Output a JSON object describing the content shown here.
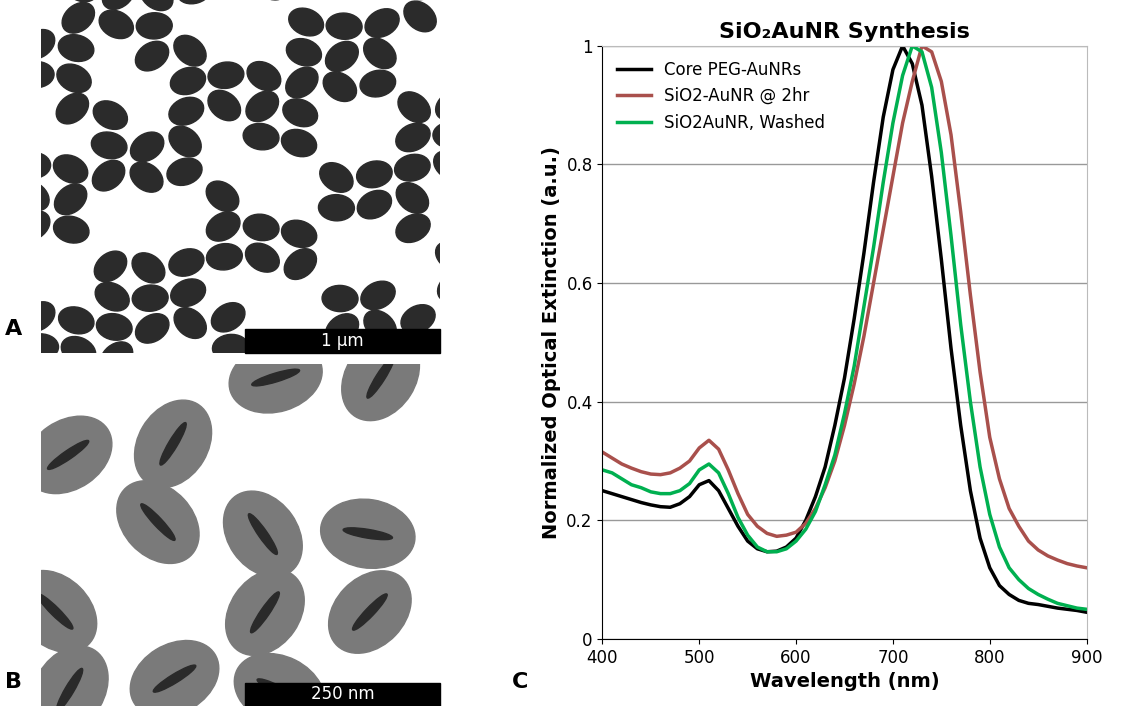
{
  "chart_panel": "C",
  "images": [
    {
      "panel": "A",
      "scale_bar": "1 µm"
    },
    {
      "panel": "B",
      "scale_bar": "250 nm"
    }
  ],
  "chart_data": {
    "type": "line",
    "title": "SiO₂AuNR Synthesis",
    "x_label": "Wavelength (nm)",
    "y_label": "Normalized Optical Extinction (a.u.)",
    "x": [
      400,
      410,
      420,
      430,
      440,
      450,
      460,
      470,
      480,
      490,
      500,
      510,
      520,
      530,
      540,
      550,
      560,
      570,
      580,
      590,
      600,
      610,
      620,
      630,
      640,
      650,
      660,
      670,
      680,
      690,
      700,
      710,
      720,
      730,
      740,
      750,
      760,
      770,
      780,
      790,
      800,
      810,
      820,
      830,
      840,
      850,
      860,
      870,
      880,
      890,
      900
    ],
    "series": [
      {
        "name": "Core PEG-AuNRs",
        "color": "#000000",
        "values": [
          0.25,
          0.245,
          0.24,
          0.235,
          0.23,
          0.226,
          0.223,
          0.222,
          0.228,
          0.24,
          0.26,
          0.267,
          0.25,
          0.22,
          0.19,
          0.165,
          0.152,
          0.147,
          0.148,
          0.155,
          0.17,
          0.2,
          0.24,
          0.29,
          0.36,
          0.44,
          0.54,
          0.65,
          0.77,
          0.88,
          0.96,
          1.0,
          0.97,
          0.9,
          0.78,
          0.64,
          0.49,
          0.36,
          0.25,
          0.17,
          0.12,
          0.09,
          0.075,
          0.065,
          0.06,
          0.058,
          0.055,
          0.052,
          0.05,
          0.048,
          0.045
        ]
      },
      {
        "name": "SiO2-AuNR @ 2hr",
        "color": "#A9504C",
        "values": [
          0.315,
          0.305,
          0.295,
          0.288,
          0.282,
          0.278,
          0.277,
          0.28,
          0.288,
          0.3,
          0.322,
          0.335,
          0.32,
          0.285,
          0.245,
          0.21,
          0.19,
          0.178,
          0.173,
          0.175,
          0.18,
          0.195,
          0.22,
          0.255,
          0.3,
          0.36,
          0.43,
          0.51,
          0.6,
          0.69,
          0.78,
          0.87,
          0.94,
          1.0,
          0.99,
          0.94,
          0.85,
          0.72,
          0.58,
          0.45,
          0.34,
          0.27,
          0.22,
          0.19,
          0.165,
          0.15,
          0.14,
          0.133,
          0.127,
          0.123,
          0.12
        ]
      },
      {
        "name": "SiO2AuNR, Washed",
        "color": "#00B050",
        "values": [
          0.285,
          0.28,
          0.27,
          0.26,
          0.255,
          0.248,
          0.245,
          0.245,
          0.25,
          0.262,
          0.285,
          0.295,
          0.28,
          0.245,
          0.205,
          0.175,
          0.155,
          0.147,
          0.147,
          0.152,
          0.165,
          0.185,
          0.215,
          0.26,
          0.31,
          0.38,
          0.46,
          0.56,
          0.66,
          0.77,
          0.87,
          0.95,
          1.0,
          0.99,
          0.93,
          0.82,
          0.68,
          0.53,
          0.4,
          0.29,
          0.21,
          0.155,
          0.12,
          0.1,
          0.085,
          0.075,
          0.067,
          0.06,
          0.056,
          0.052,
          0.05
        ]
      }
    ],
    "xlim": [
      400,
      900
    ],
    "xticks": [
      400,
      500,
      600,
      700,
      800,
      900
    ],
    "ylim": [
      0,
      1
    ],
    "yticks": [
      0,
      0.2,
      0.4,
      0.6,
      0.8,
      1
    ],
    "grid": true,
    "legend": "upper left"
  }
}
